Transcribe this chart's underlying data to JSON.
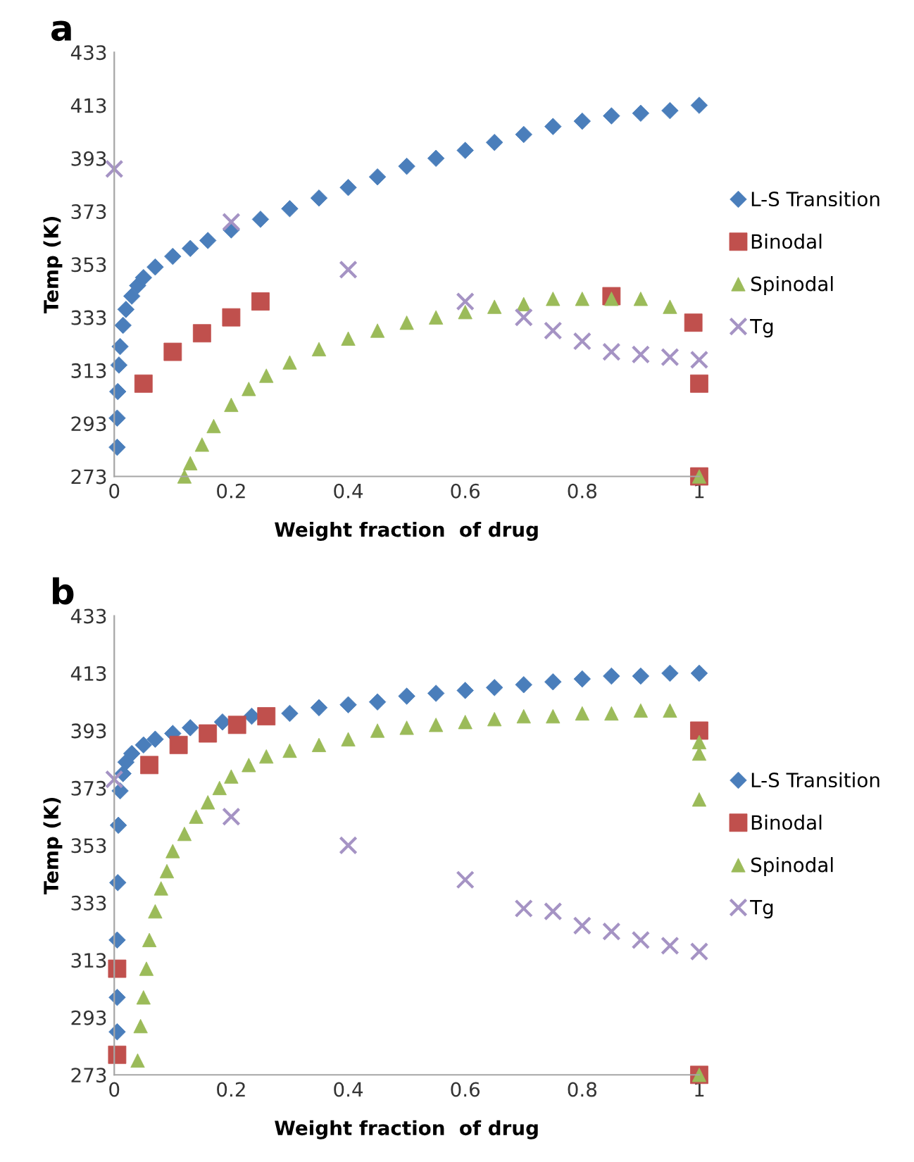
{
  "chart_data": [
    {
      "type": "scatter",
      "title": "a",
      "xlabel": "Weight fraction  of drug",
      "ylabel": "Temp (K)",
      "xlim": [
        0,
        1
      ],
      "xticks": [
        0,
        0.2,
        0.4,
        0.6,
        0.8,
        1
      ],
      "ylim": [
        273,
        433
      ],
      "yticks": [
        273,
        293,
        313,
        333,
        353,
        373,
        393,
        413,
        433
      ],
      "grid": false,
      "legend": "right",
      "series": [
        {
          "name": "L-S Transition",
          "color": "#4a7ebb",
          "marker": "diamond",
          "x": [
            0.005,
            0.005,
            0.006,
            0.008,
            0.01,
            0.015,
            0.02,
            0.03,
            0.04,
            0.05,
            0.07,
            0.1,
            0.13,
            0.16,
            0.2,
            0.25,
            0.3,
            0.35,
            0.4,
            0.45,
            0.5,
            0.55,
            0.6,
            0.65,
            0.7,
            0.75,
            0.8,
            0.85,
            0.9,
            0.95,
            1.0
          ],
          "values": [
            284,
            295,
            305,
            315,
            322,
            330,
            336,
            341,
            345,
            348,
            352,
            356,
            359,
            362,
            366,
            370,
            374,
            378,
            382,
            386,
            390,
            393,
            396,
            399,
            402,
            405,
            407,
            409,
            410,
            411,
            413
          ]
        },
        {
          "name": "Binodal",
          "color": "#c0504d",
          "marker": "square",
          "x": [
            0.05,
            0.1,
            0.15,
            0.2,
            0.25,
            0.85,
            0.99,
            1.0,
            1.0
          ],
          "values": [
            308,
            320,
            327,
            333,
            339,
            341,
            331,
            308,
            273
          ]
        },
        {
          "name": "Spinodal",
          "color": "#9bbb59",
          "marker": "triangle",
          "x": [
            0.12,
            0.13,
            0.15,
            0.17,
            0.2,
            0.23,
            0.26,
            0.3,
            0.35,
            0.4,
            0.45,
            0.5,
            0.55,
            0.6,
            0.65,
            0.7,
            0.75,
            0.8,
            0.85,
            0.9,
            0.95,
            1.0
          ],
          "values": [
            273,
            278,
            285,
            292,
            300,
            306,
            311,
            316,
            321,
            325,
            328,
            331,
            333,
            335,
            337,
            338,
            340,
            340,
            340,
            340,
            337,
            273
          ]
        },
        {
          "name": "Tg",
          "color": "#a593c4",
          "marker": "cross",
          "x": [
            0,
            0.2,
            0.4,
            0.6,
            0.7,
            0.75,
            0.8,
            0.85,
            0.9,
            0.95,
            1.0
          ],
          "values": [
            389,
            369,
            351,
            339,
            333,
            328,
            324,
            320,
            319,
            318,
            317
          ]
        }
      ]
    },
    {
      "type": "scatter",
      "title": "b",
      "xlabel": "Weight fraction  of drug",
      "ylabel": "Temp (K)",
      "xlim": [
        0,
        1
      ],
      "xticks": [
        0,
        0.2,
        0.4,
        0.6,
        0.8,
        1
      ],
      "ylim": [
        273,
        433
      ],
      "yticks": [
        273,
        293,
        313,
        333,
        353,
        373,
        393,
        413,
        433
      ],
      "grid": false,
      "legend": "right",
      "series": [
        {
          "name": "L-S Transition",
          "color": "#4a7ebb",
          "marker": "diamond",
          "x": [
            0.005,
            0.005,
            0.005,
            0.006,
            0.007,
            0.01,
            0.015,
            0.02,
            0.03,
            0.05,
            0.07,
            0.1,
            0.13,
            0.185,
            0.235,
            0.3,
            0.35,
            0.4,
            0.45,
            0.5,
            0.55,
            0.6,
            0.65,
            0.7,
            0.75,
            0.8,
            0.85,
            0.9,
            0.95,
            1.0
          ],
          "values": [
            288,
            300,
            320,
            340,
            360,
            372,
            378,
            382,
            385,
            388,
            390,
            392,
            394,
            396,
            398,
            399,
            401,
            402,
            403,
            405,
            406,
            407,
            408,
            409,
            410,
            411,
            412,
            412,
            413,
            413
          ]
        },
        {
          "name": "Binodal",
          "color": "#c0504d",
          "marker": "square",
          "x": [
            0.005,
            0.005,
            0.06,
            0.11,
            0.16,
            0.21,
            0.26,
            1.0,
            1.0
          ],
          "values": [
            280,
            310,
            381,
            388,
            392,
            395,
            398,
            393,
            273
          ]
        },
        {
          "name": "Spinodal",
          "color": "#9bbb59",
          "marker": "triangle",
          "x": [
            0.04,
            0.045,
            0.05,
            0.055,
            0.06,
            0.07,
            0.08,
            0.09,
            0.1,
            0.12,
            0.14,
            0.16,
            0.18,
            0.2,
            0.23,
            0.26,
            0.3,
            0.35,
            0.4,
            0.45,
            0.5,
            0.55,
            0.6,
            0.65,
            0.7,
            0.75,
            0.8,
            0.85,
            0.9,
            0.95,
            1.0,
            1.0,
            1.0,
            1.0
          ],
          "values": [
            278,
            290,
            300,
            310,
            320,
            330,
            338,
            344,
            351,
            357,
            363,
            368,
            373,
            377,
            381,
            384,
            386,
            388,
            390,
            393,
            394,
            395,
            396,
            397,
            398,
            398,
            399,
            399,
            400,
            400,
            389,
            385,
            369,
            273
          ]
        },
        {
          "name": "Tg",
          "color": "#a593c4",
          "marker": "cross",
          "x": [
            0,
            0.2,
            0.4,
            0.6,
            0.7,
            0.75,
            0.8,
            0.85,
            0.9,
            0.95,
            1.0
          ],
          "values": [
            376,
            363,
            353,
            341,
            331,
            330,
            325,
            323,
            320,
            318,
            316
          ]
        }
      ]
    }
  ]
}
